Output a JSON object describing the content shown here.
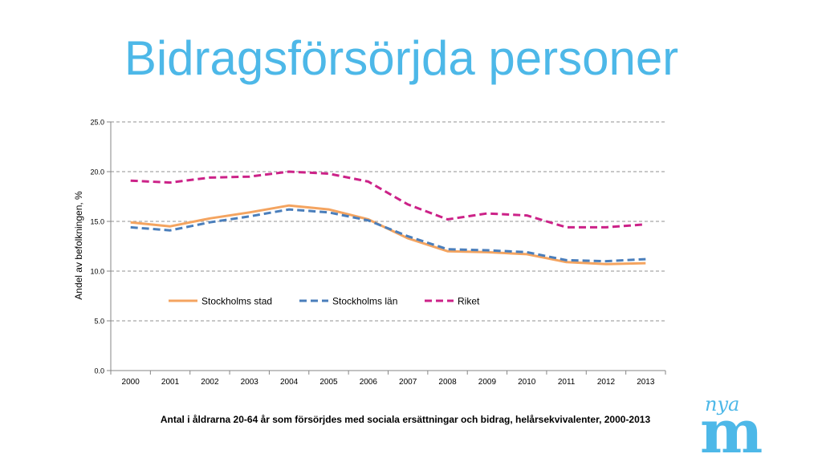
{
  "slide": {
    "title": "Bidragsförsörjda personer",
    "caption": "Antal i åldrarna 20-64 år som försörjdes med sociala ersättningar och bidrag, helårsekvivalenter, 2000-2013",
    "logo_text_small": "nya",
    "logo_text_big": "m",
    "title_color": "#4db8e8",
    "logo_color": "#4db8e8"
  },
  "chart_data": {
    "type": "line",
    "title": "",
    "xlabel": "",
    "ylabel": "Andel av befolkningen, %",
    "categories": [
      "2000",
      "2001",
      "2002",
      "2003",
      "2004",
      "2005",
      "2006",
      "2007",
      "2008",
      "2009",
      "2010",
      "2011",
      "2012",
      "2013"
    ],
    "yticks": [
      "0.0",
      "5.0",
      "10.0",
      "15.0",
      "20.0",
      "25.0"
    ],
    "ylim": [
      0,
      25
    ],
    "grid": "horizontal dashed",
    "legend_position": "inside, center",
    "series": [
      {
        "name": "Stockholms stad",
        "style": "solid",
        "color": "#f4a460",
        "values": [
          14.9,
          14.5,
          15.3,
          15.9,
          16.6,
          16.2,
          15.2,
          13.3,
          12.0,
          11.9,
          11.7,
          10.9,
          10.7,
          10.8
        ]
      },
      {
        "name": "Stockholms län",
        "style": "dashed",
        "color": "#4a7ebb",
        "values": [
          14.4,
          14.1,
          14.9,
          15.5,
          16.2,
          15.9,
          15.1,
          13.5,
          12.2,
          12.1,
          11.9,
          11.1,
          11.0,
          11.2
        ]
      },
      {
        "name": "Riket",
        "style": "dashed",
        "color": "#cc2288",
        "values": [
          19.1,
          18.9,
          19.4,
          19.5,
          20.0,
          19.8,
          19.0,
          16.7,
          15.2,
          15.8,
          15.6,
          14.4,
          14.4,
          14.7
        ]
      }
    ]
  }
}
